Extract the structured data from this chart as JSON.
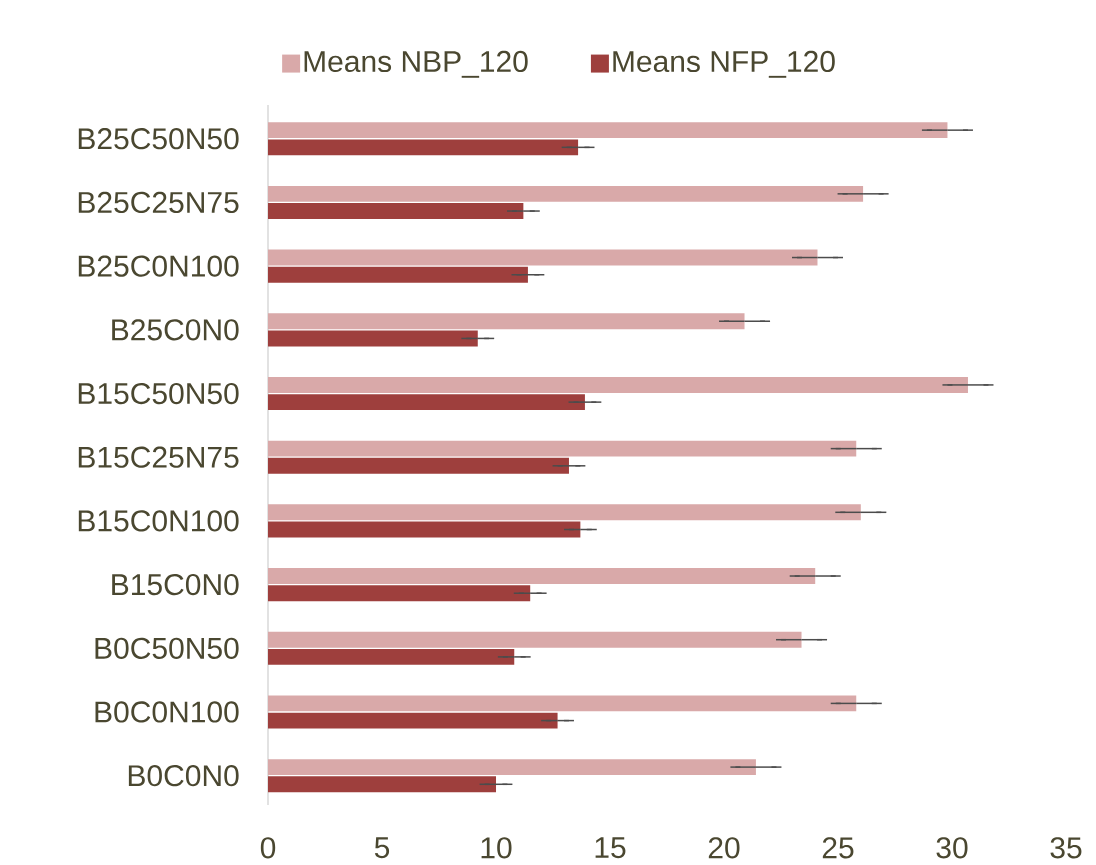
{
  "chart_data": {
    "type": "bar",
    "orientation": "horizontal",
    "categories": [
      "B25C50N50",
      "B25C25N75",
      "B25C0N100",
      "B25C0N0",
      "B15C50N50",
      "B15C25N75",
      "B15C0N100",
      "B15C0N0",
      "B0C50N50",
      "B0C0N100",
      "B0C0N0"
    ],
    "series": [
      {
        "name": "Means NBP_120",
        "color": "#d9a9a9",
        "values": [
          29.8,
          26.1,
          24.1,
          20.9,
          30.7,
          25.8,
          26.0,
          24.0,
          23.4,
          25.8,
          21.4
        ],
        "errors": [
          0.9,
          0.9,
          0.9,
          0.9,
          0.9,
          0.9,
          0.9,
          0.9,
          0.9,
          0.9,
          0.9
        ]
      },
      {
        "name": "Means NFP_120",
        "color": "#9e3f3d",
        "values": [
          13.6,
          11.2,
          11.4,
          9.2,
          13.9,
          13.2,
          13.7,
          11.5,
          10.8,
          12.7,
          10.0
        ],
        "errors": [
          0.5,
          0.5,
          0.5,
          0.5,
          0.5,
          0.5,
          0.5,
          0.5,
          0.5,
          0.5,
          0.5
        ]
      }
    ],
    "xlim": [
      0,
      35
    ],
    "xticks": [
      0,
      5,
      10,
      15,
      20,
      25,
      30,
      35
    ],
    "grid": false,
    "legend": "top"
  }
}
